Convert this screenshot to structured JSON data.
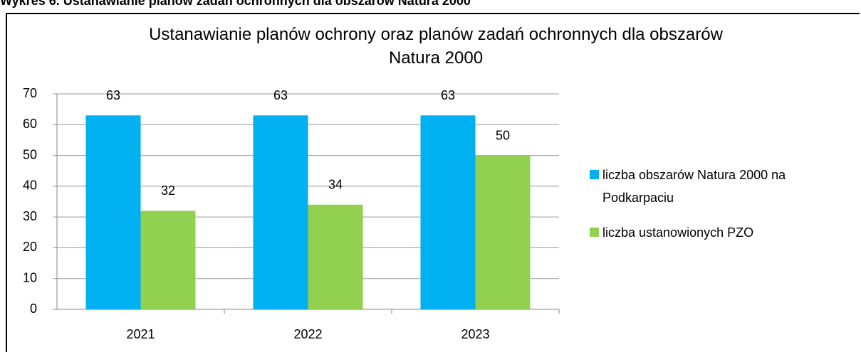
{
  "header": "Wykres 6. Ustanawianie planów zadań ochronnych dla obszarów Natura 2000",
  "chart_data": {
    "type": "bar",
    "title": "Ustanawianie planów ochrony oraz planów zadań ochronnych dla obszarów Natura 2000",
    "categories": [
      "2021",
      "2022",
      "2023"
    ],
    "series": [
      {
        "name": "liczba obszarów Natura 2000 na Podkarpaciu",
        "color": "#00b0f0",
        "values": [
          63,
          63,
          63
        ]
      },
      {
        "name": "liczba ustanowionych PZO",
        "color": "#92d050",
        "values": [
          32,
          34,
          50
        ]
      }
    ],
    "ylim": [
      0,
      70
    ],
    "yticks": [
      0,
      10,
      20,
      30,
      40,
      50,
      60,
      70
    ],
    "grid": true,
    "legend": "right"
  }
}
